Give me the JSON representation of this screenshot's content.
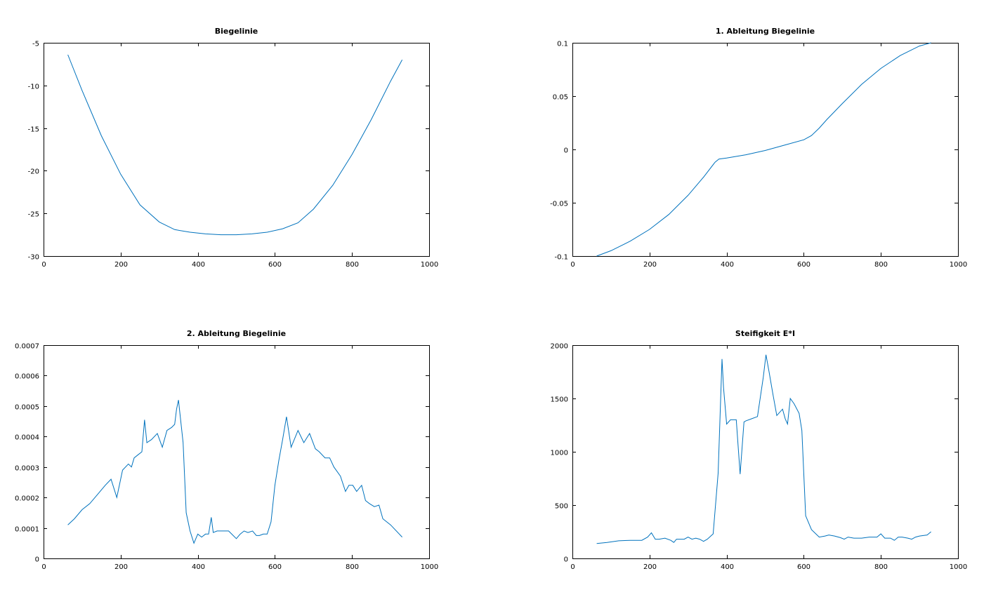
{
  "theme": {
    "line_color": "#0072bd"
  },
  "chart_data": [
    {
      "type": "line",
      "title": "Biegelinie",
      "xlabel": "",
      "ylabel": "",
      "xlim": [
        0,
        1000
      ],
      "ylim": [
        -30,
        -5
      ],
      "xticks": [
        0,
        200,
        400,
        600,
        800,
        1000
      ],
      "yticks": [
        -30,
        -25,
        -20,
        -15,
        -10,
        -5
      ],
      "ytick_labels": [
        "-30",
        "-25",
        "-20",
        "-15",
        "-10",
        "-5"
      ],
      "grid": false,
      "box": true,
      "series": [
        {
          "x": [
            63,
            100,
            150,
            200,
            250,
            300,
            340,
            380,
            420,
            460,
            500,
            540,
            580,
            620,
            660,
            700,
            750,
            800,
            850,
            900,
            930
          ],
          "y": [
            -6.4,
            -10.6,
            -15.9,
            -20.4,
            -24.0,
            -26.0,
            -26.9,
            -27.2,
            -27.4,
            -27.5,
            -27.5,
            -27.4,
            -27.2,
            -26.8,
            -26.1,
            -24.5,
            -21.7,
            -18.1,
            -14.0,
            -9.5,
            -7.0
          ]
        }
      ]
    },
    {
      "type": "line",
      "title": "1. Ableitung Biegelinie",
      "xlabel": "",
      "ylabel": "",
      "xlim": [
        0,
        1000
      ],
      "ylim": [
        -0.1,
        0.1
      ],
      "xticks": [
        0,
        200,
        400,
        600,
        800,
        1000
      ],
      "yticks": [
        -0.1,
        -0.05,
        0,
        0.05,
        0.1
      ],
      "ytick_labels": [
        "-0.1",
        "-0.05",
        "0",
        "0.05",
        "0.1"
      ],
      "grid": false,
      "box": true,
      "series": [
        {
          "x": [
            63,
            100,
            150,
            200,
            250,
            300,
            340,
            370,
            380,
            400,
            450,
            500,
            550,
            600,
            620,
            640,
            660,
            700,
            750,
            800,
            850,
            900,
            930
          ],
          "y": [
            -0.1,
            -0.095,
            -0.086,
            -0.075,
            -0.061,
            -0.043,
            -0.026,
            -0.012,
            -0.009,
            -0.008,
            -0.005,
            -0.001,
            0.004,
            0.009,
            0.013,
            0.02,
            0.028,
            0.043,
            0.061,
            0.076,
            0.088,
            0.097,
            0.1
          ]
        }
      ]
    },
    {
      "type": "line",
      "title": "2. Ableitung Biegelinie",
      "xlabel": "",
      "ylabel": "",
      "xlim": [
        0,
        1000
      ],
      "ylim": [
        0,
        0.0007
      ],
      "xticks": [
        0,
        200,
        400,
        600,
        800,
        1000
      ],
      "yticks": [
        0,
        0.0001,
        0.0002,
        0.0003,
        0.0004,
        0.0005,
        0.0006,
        0.0007
      ],
      "ytick_labels": [
        "0",
        "0.0001",
        "0.0002",
        "0.0003",
        "0.0004",
        "0.0005",
        "0.0006",
        "0.0007"
      ],
      "grid": false,
      "box": true,
      "series": [
        {
          "x": [
            63,
            80,
            100,
            120,
            140,
            160,
            175,
            190,
            205,
            220,
            228,
            235,
            245,
            255,
            262,
            268,
            280,
            295,
            308,
            320,
            332,
            340,
            345,
            350,
            362,
            370,
            380,
            390,
            400,
            410,
            420,
            428,
            435,
            440,
            450,
            460,
            470,
            480,
            500,
            510,
            520,
            530,
            542,
            552,
            560,
            570,
            580,
            590,
            600,
            610,
            620,
            630,
            642,
            660,
            675,
            690,
            705,
            715,
            730,
            742,
            753,
            770,
            783,
            792,
            802,
            812,
            825,
            835,
            845,
            858,
            870,
            880,
            900,
            930
          ],
          "y": [
            0.00011,
            0.00013,
            0.00016,
            0.00018,
            0.00021,
            0.00024,
            0.00026,
            0.0002,
            0.00029,
            0.00031,
            0.0003,
            0.00033,
            0.00034,
            0.00035,
            0.000455,
            0.00038,
            0.00039,
            0.00041,
            0.000365,
            0.00042,
            0.00043,
            0.00044,
            0.00049,
            0.00052,
            0.00038,
            0.00015,
            9e-05,
            5e-05,
            8e-05,
            7e-05,
            8e-05,
            8e-05,
            0.000135,
            8.5e-05,
            9e-05,
            9e-05,
            9e-05,
            9e-05,
            6.5e-05,
            8e-05,
            9e-05,
            8.5e-05,
            9e-05,
            7.5e-05,
            7.5e-05,
            8e-05,
            8e-05,
            0.00012,
            0.00024,
            0.00032,
            0.00039,
            0.000465,
            0.000365,
            0.00042,
            0.00038,
            0.00041,
            0.00036,
            0.00035,
            0.00033,
            0.00033,
            0.0003,
            0.00027,
            0.00022,
            0.00024,
            0.00024,
            0.00022,
            0.00024,
            0.00019,
            0.00018,
            0.00017,
            0.000175,
            0.00013,
            0.00011,
            7e-05
          ]
        }
      ]
    },
    {
      "type": "line",
      "title": "Steifigkeit E*I",
      "xlabel": "",
      "ylabel": "",
      "xlim": [
        0,
        1000
      ],
      "ylim": [
        0,
        2000
      ],
      "xticks": [
        0,
        200,
        400,
        600,
        800,
        1000
      ],
      "yticks": [
        0,
        500,
        1000,
        1500,
        2000
      ],
      "ytick_labels": [
        "0",
        "500",
        "1000",
        "1500",
        "2000"
      ],
      "grid": false,
      "box": true,
      "series": [
        {
          "x": [
            63,
            90,
            120,
            150,
            180,
            195,
            205,
            215,
            225,
            240,
            255,
            263,
            270,
            290,
            300,
            310,
            320,
            330,
            340,
            350,
            365,
            378,
            388,
            392,
            400,
            410,
            425,
            435,
            445,
            450,
            465,
            480,
            495,
            502,
            510,
            520,
            530,
            545,
            552,
            558,
            565,
            575,
            588,
            595,
            605,
            620,
            640,
            655,
            665,
            680,
            695,
            705,
            715,
            730,
            750,
            770,
            790,
            800,
            810,
            825,
            835,
            845,
            855,
            870,
            880,
            890,
            900,
            920,
            930
          ],
          "y": [
            140,
            150,
            165,
            170,
            170,
            200,
            240,
            180,
            180,
            190,
            170,
            150,
            180,
            180,
            200,
            180,
            190,
            180,
            160,
            180,
            230,
            800,
            1870,
            1600,
            1260,
            1300,
            1300,
            790,
            1280,
            1290,
            1310,
            1330,
            1700,
            1910,
            1750,
            1540,
            1340,
            1400,
            1310,
            1260,
            1500,
            1450,
            1360,
            1200,
            400,
            270,
            200,
            210,
            220,
            210,
            195,
            180,
            200,
            190,
            190,
            200,
            200,
            230,
            190,
            190,
            170,
            200,
            200,
            190,
            180,
            200,
            210,
            220,
            250
          ]
        }
      ]
    }
  ]
}
